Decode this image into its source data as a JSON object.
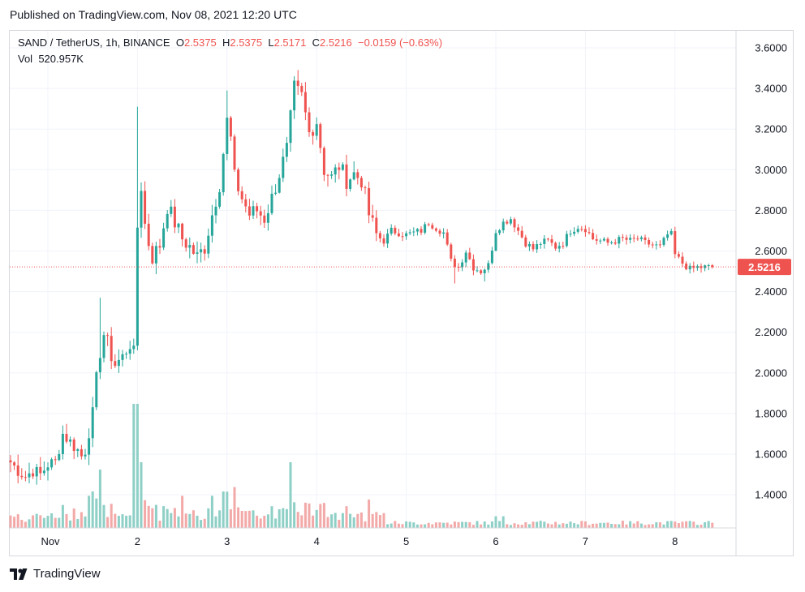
{
  "header": {
    "published": "Published on TradingView.com, Nov 08, 2021 12:20 UTC"
  },
  "legend": {
    "symbol": "SAND / TetherUS, 1h, BINANCE",
    "o_label": "O",
    "o_value": "2.5375",
    "h_label": "H",
    "h_value": "2.5375",
    "l_label": "L",
    "l_value": "2.5171",
    "c_label": "C",
    "c_value": "2.5216",
    "change": "−0.0159 (−0.63%)",
    "vol_label": "Vol",
    "vol_value": "520.957K"
  },
  "footer": {
    "brand": "TradingView"
  },
  "colors": {
    "up": "#26a69a",
    "down": "#ef5350",
    "vol_up": "#8ecfc6",
    "vol_down": "#f2a9a8",
    "grid": "#f0f3fa",
    "price_line": "#ef5350"
  },
  "chart_data": {
    "type": "candlestick",
    "y_ticks": [
      "3.6000",
      "3.4000",
      "3.2000",
      "3.0000",
      "2.8000",
      "2.6000",
      "2.4000",
      "2.2000",
      "2.0000",
      "1.8000",
      "1.6000",
      "1.4000"
    ],
    "x_ticks": [
      {
        "label": "Nov",
        "t": 0
      },
      {
        "label": "2",
        "t": 24
      },
      {
        "label": "3",
        "t": 48
      },
      {
        "label": "4",
        "t": 72
      },
      {
        "label": "5",
        "t": 96
      },
      {
        "label": "6",
        "t": 120
      },
      {
        "label": "7",
        "t": 144
      },
      {
        "label": "8",
        "t": 168
      }
    ],
    "ylim": [
      1.24,
      3.67
    ],
    "last_price": "2.5216",
    "last_price_value": 2.5216,
    "anchors": [
      [
        -10,
        1.56
      ],
      [
        -8,
        1.52
      ],
      [
        -6,
        1.49
      ],
      [
        -4,
        1.52
      ],
      [
        -2,
        1.5
      ],
      [
        0,
        1.55
      ],
      [
        2,
        1.56
      ],
      [
        3,
        1.63
      ],
      [
        4,
        1.7
      ],
      [
        6,
        1.66
      ],
      [
        8,
        1.62
      ],
      [
        9,
        1.59
      ],
      [
        10,
        1.62
      ],
      [
        12,
        1.8
      ],
      [
        13,
        1.97
      ],
      [
        14,
        2.1
      ],
      [
        15,
        2.19
      ],
      [
        16,
        2.15
      ],
      [
        17,
        2.08
      ],
      [
        18,
        2.04
      ],
      [
        20,
        2.08
      ],
      [
        22,
        2.14
      ],
      [
        23,
        2.1
      ],
      [
        24,
        2.72
      ],
      [
        25,
        2.92
      ],
      [
        26,
        2.73
      ],
      [
        27,
        2.64
      ],
      [
        28,
        2.57
      ],
      [
        30,
        2.63
      ],
      [
        32,
        2.82
      ],
      [
        34,
        2.74
      ],
      [
        36,
        2.66
      ],
      [
        38,
        2.62
      ],
      [
        40,
        2.57
      ],
      [
        42,
        2.62
      ],
      [
        44,
        2.78
      ],
      [
        46,
        2.93
      ],
      [
        48,
        3.24
      ],
      [
        49,
        3.15
      ],
      [
        50,
        2.96
      ],
      [
        52,
        2.86
      ],
      [
        54,
        2.78
      ],
      [
        56,
        2.8
      ],
      [
        58,
        2.76
      ],
      [
        60,
        2.86
      ],
      [
        62,
        2.98
      ],
      [
        64,
        3.1
      ],
      [
        66,
        3.4
      ],
      [
        68,
        3.36
      ],
      [
        70,
        3.18
      ],
      [
        72,
        3.24
      ],
      [
        74,
        3.0
      ],
      [
        76,
        2.96
      ],
      [
        78,
        3.02
      ],
      [
        80,
        2.95
      ],
      [
        82,
        2.98
      ],
      [
        84,
        2.95
      ],
      [
        86,
        2.78
      ],
      [
        88,
        2.68
      ],
      [
        90,
        2.65
      ],
      [
        92,
        2.7
      ],
      [
        96,
        2.68
      ],
      [
        100,
        2.7
      ],
      [
        102,
        2.74
      ],
      [
        106,
        2.69
      ],
      [
        108,
        2.55
      ],
      [
        110,
        2.52
      ],
      [
        112,
        2.6
      ],
      [
        114,
        2.52
      ],
      [
        116,
        2.5
      ],
      [
        118,
        2.53
      ],
      [
        120,
        2.7
      ],
      [
        122,
        2.74
      ],
      [
        124,
        2.76
      ],
      [
        126,
        2.7
      ],
      [
        128,
        2.64
      ],
      [
        130,
        2.61
      ],
      [
        132,
        2.64
      ],
      [
        134,
        2.65
      ],
      [
        136,
        2.62
      ],
      [
        138,
        2.64
      ],
      [
        140,
        2.7
      ],
      [
        142,
        2.72
      ],
      [
        144,
        2.71
      ],
      [
        146,
        2.66
      ],
      [
        150,
        2.64
      ],
      [
        152,
        2.65
      ],
      [
        154,
        2.66
      ],
      [
        156,
        2.65
      ],
      [
        158,
        2.66
      ],
      [
        160,
        2.64
      ],
      [
        162,
        2.63
      ],
      [
        164,
        2.62
      ],
      [
        166,
        2.68
      ],
      [
        167,
        2.68
      ],
      [
        168,
        2.58
      ],
      [
        170,
        2.54
      ],
      [
        172,
        2.51
      ],
      [
        174,
        2.52
      ],
      [
        177,
        2.52
      ],
      [
        178,
        2.52
      ]
    ],
    "volume_scale": "relative",
    "volume_peaks": [
      [
        23,
        0.85
      ],
      [
        24,
        0.85
      ],
      [
        25,
        0.45
      ],
      [
        14,
        0.4
      ],
      [
        65,
        0.45
      ],
      [
        12,
        0.25
      ],
      [
        11,
        0.22
      ],
      [
        50,
        0.28
      ],
      [
        47,
        0.25
      ],
      [
        36,
        0.22
      ],
      [
        44,
        0.22
      ]
    ]
  }
}
